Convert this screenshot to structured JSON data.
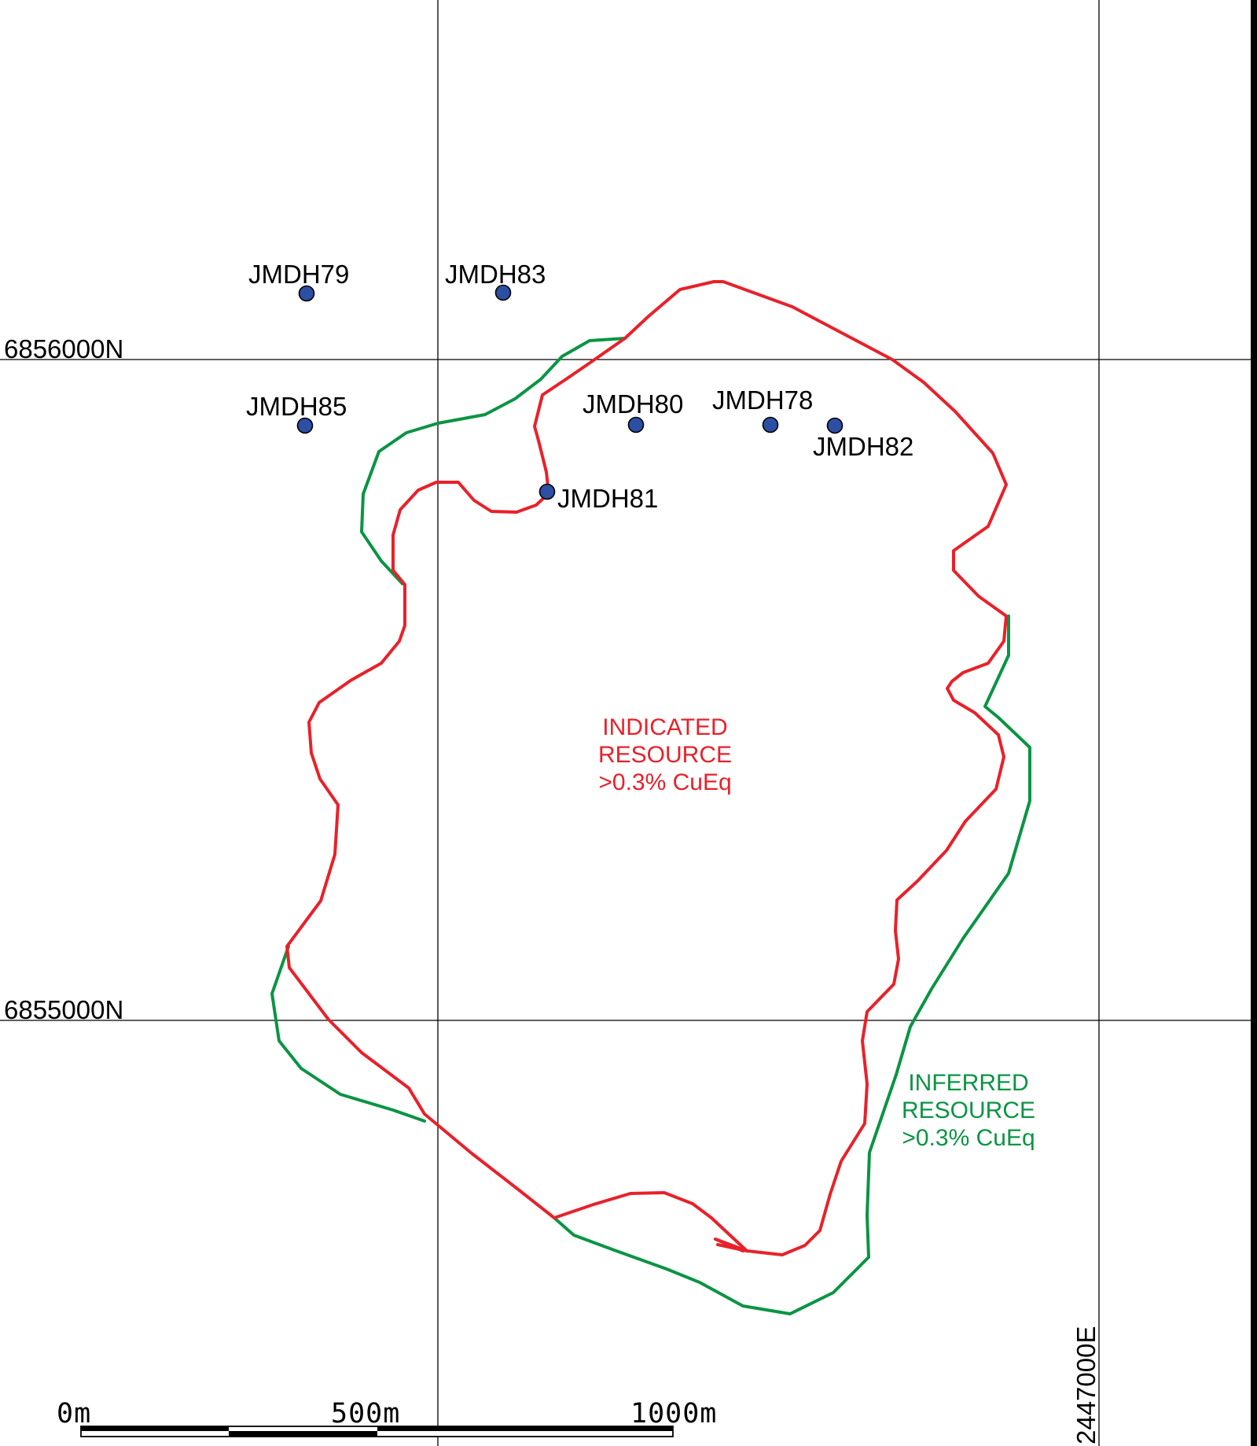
{
  "grid": {
    "northing_labels": [
      "6856000N",
      "6855000N"
    ],
    "easting_label": "2447000E"
  },
  "drillholes": [
    {
      "name": "JMDH79"
    },
    {
      "name": "JMDH83"
    },
    {
      "name": "JMDH85"
    },
    {
      "name": "JMDH80"
    },
    {
      "name": "JMDH78"
    },
    {
      "name": "JMDH82"
    },
    {
      "name": "JMDH81"
    }
  ],
  "resources": {
    "indicated": {
      "lines": [
        "INDICATED",
        "RESOURCE",
        ">0.3% CuEq"
      ],
      "color": "#e8212a"
    },
    "inferred": {
      "lines": [
        "INFERRED",
        "RESOURCE",
        ">0.3% CuEq"
      ],
      "color": "#0b9444"
    }
  },
  "scale_bar": {
    "labels": [
      "0m",
      "500m",
      "1000m"
    ]
  },
  "colors": {
    "drillhole": "#2d4fa3",
    "grid": "#000000"
  }
}
